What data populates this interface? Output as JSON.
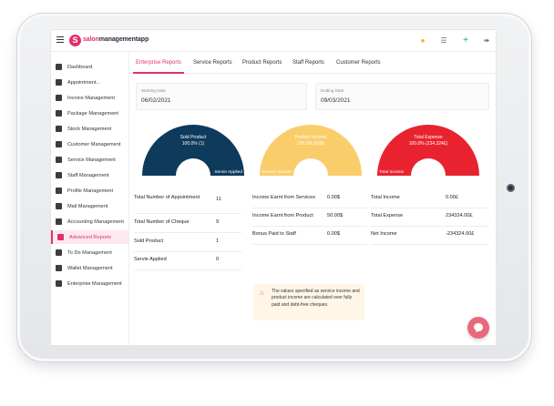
{
  "brand": {
    "mark": "S",
    "prefix": "salon",
    "suffix": "managementapp"
  },
  "header_icons": [
    "bell-icon",
    "list-icon",
    "plus-icon",
    "exit-icon"
  ],
  "sidebar": {
    "items": [
      {
        "label": "Dashboard",
        "icon": "home-icon",
        "active": false
      },
      {
        "label": "Appointment...",
        "icon": "calendar-icon",
        "active": false
      },
      {
        "label": "Invoice Management",
        "icon": "invoice-icon",
        "active": false
      },
      {
        "label": "Package Management",
        "icon": "package-icon",
        "active": false
      },
      {
        "label": "Stock Management",
        "icon": "stock-icon",
        "active": false
      },
      {
        "label": "Customer Management",
        "icon": "users-icon",
        "active": false
      },
      {
        "label": "Service Management",
        "icon": "service-icon",
        "active": false
      },
      {
        "label": "Staff Management",
        "icon": "staff-icon",
        "active": false
      },
      {
        "label": "Profile Management",
        "icon": "profile-icon",
        "active": false
      },
      {
        "label": "Mail Management",
        "icon": "mail-icon",
        "active": false
      },
      {
        "label": "Accounting Management",
        "icon": "bank-icon",
        "active": false
      },
      {
        "label": "Advanced Reports",
        "icon": "reports-icon",
        "active": true
      },
      {
        "label": "To Do Management",
        "icon": "todo-icon",
        "active": false
      },
      {
        "label": "Wallet Management",
        "icon": "wallet-icon",
        "active": false
      },
      {
        "label": "Enterprise Management",
        "icon": "gear-icon",
        "active": false
      }
    ]
  },
  "tabs": [
    {
      "label": "Enterprise Reports",
      "active": true
    },
    {
      "label": "Service Reports",
      "active": false
    },
    {
      "label": "Product Reports",
      "active": false
    },
    {
      "label": "Staff Reports",
      "active": false
    },
    {
      "label": "Customer Reports",
      "active": false
    }
  ],
  "dates": {
    "start_label": "Starting Date",
    "start_value": "06/02/2021",
    "end_label": "Ending Date",
    "end_value": "09/03/2021"
  },
  "gauges": [
    {
      "title": "Sold Product",
      "value": "100.0% (1)",
      "corner": "Servie Applied",
      "color": "#0e3a5b",
      "percent": 100
    },
    {
      "title": "Product Income",
      "value": "100.0% (50$)",
      "corner": "Service Income",
      "color": "#f9cd6a",
      "percent": 100
    },
    {
      "title": "Total Expense",
      "value": "100.0% (234,324£)",
      "corner": "Total Income",
      "color": "#e8232f",
      "percent": 100
    }
  ],
  "stats": {
    "col1": [
      {
        "label": "Total Number of Appointment",
        "value": "11"
      },
      {
        "label": "Total Number of Cheque",
        "value": "9"
      },
      {
        "label": "Sold Product",
        "value": "1"
      },
      {
        "label": "Servie Applied",
        "value": "0"
      }
    ],
    "col2": [
      {
        "label": "Income Earnt from Services",
        "value": "0.00$"
      },
      {
        "label": "Income Earnt from Product",
        "value": "50.00$"
      },
      {
        "label": "Bonus Paid to Staff",
        "value": "0.00$"
      }
    ],
    "col3": [
      {
        "label": "Total Income",
        "value": "0.00£"
      },
      {
        "label": "Total Expense",
        "value": "234324.00£"
      },
      {
        "label": "Net Income",
        "value": "-234324.00£"
      }
    ]
  },
  "note": {
    "icon": "warning-icon",
    "text": "The values specified as service income and product income are calculated over fully paid and debt-free cheques."
  },
  "chat_icon": "chat-icon"
}
